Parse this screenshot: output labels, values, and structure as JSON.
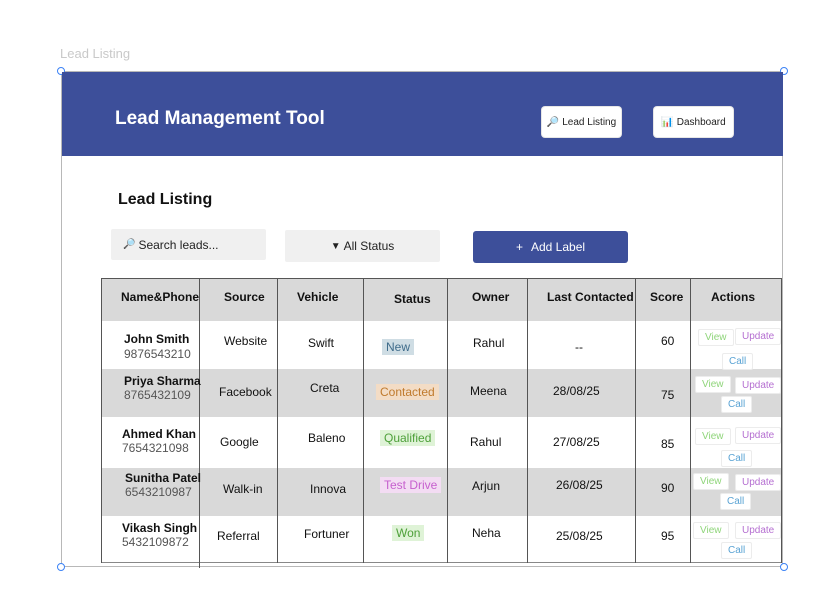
{
  "frame": {
    "label": "Lead Listing"
  },
  "header": {
    "title": "Lead Management Tool",
    "nav": [
      {
        "icon": "magnifier-icon",
        "glyph": "🔎",
        "label": "Lead Listing"
      },
      {
        "icon": "bar-chart-icon",
        "glyph": "📊",
        "label": "Dashboard"
      }
    ]
  },
  "main": {
    "title": "Lead Listing",
    "search": {
      "icon": "magnifier-icon",
      "glyph": "🔎",
      "placeholder": "Search leads..."
    },
    "status_filter": {
      "icon": "triangle-down-icon",
      "glyph": "▼",
      "selected": "All Status"
    },
    "add_button": {
      "icon": "plus-icon",
      "glyph": "+",
      "label": "Add Label"
    }
  },
  "table": {
    "columns": [
      "Name&Phone",
      "Source",
      "Vehicle",
      "Status",
      "Owner",
      "Last Contacted",
      "Score",
      "Actions"
    ],
    "rows": [
      {
        "name": "John Smith",
        "phone": "9876543210",
        "source": "Website",
        "vehicle": "Swift",
        "status": "New",
        "owner": "Rahul",
        "last_contacted": "--",
        "score": "60"
      },
      {
        "name": "Priya Sharma",
        "phone": "8765432109",
        "source": "Facebook",
        "vehicle": "Creta",
        "status": "Contacted",
        "owner": "Meena",
        "last_contacted": "28/08/25",
        "score": "75"
      },
      {
        "name": "Ahmed Khan",
        "phone": "7654321098",
        "source": "Google",
        "vehicle": "Baleno",
        "status": "Qualified",
        "owner": "Rahul",
        "last_contacted": "27/08/25",
        "score": "85"
      },
      {
        "name": "Sunitha Patel",
        "phone": "6543210987",
        "source": "Walk-in",
        "vehicle": "Innova",
        "status": "Test Drive",
        "owner": "Arjun",
        "last_contacted": "26/08/25",
        "score": "90"
      },
      {
        "name": "Vikash Singh",
        "phone": "5432109872",
        "source": "Referral",
        "vehicle": "Fortuner",
        "status": "Won",
        "owner": "Neha",
        "last_contacted": "25/08/25",
        "score": "95"
      }
    ],
    "actions": {
      "view": "View",
      "update": "Update",
      "call": "Call"
    }
  },
  "colors": {
    "brand": "#3d4f9a",
    "row_stripe": "#d9d9d9",
    "status_new": "#3e6b8a",
    "status_contacted": "#c07a2d",
    "status_qualified": "#4ea03a",
    "status_test_drive": "#c65fce",
    "status_won": "#4ea03a",
    "action_view": "#8fd57a",
    "action_update": "#b56fd1",
    "action_call": "#5aa3d4"
  }
}
